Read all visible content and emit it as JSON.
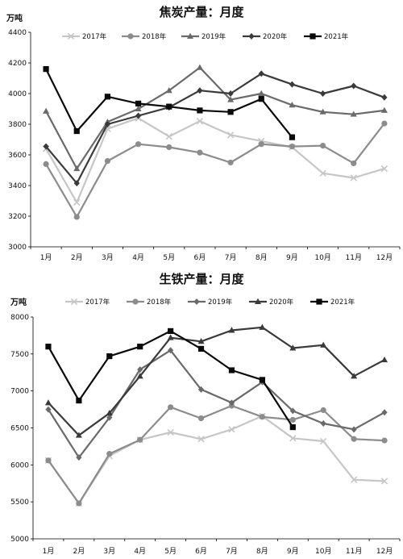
{
  "chart_data": [
    {
      "type": "line",
      "title": "焦炭产量：月度",
      "unit": "万吨",
      "categories": [
        "1月",
        "2月",
        "3月",
        "4月",
        "5月",
        "6月",
        "7月",
        "8月",
        "9月",
        "10月",
        "11月",
        "12月"
      ],
      "y_ticks": [
        "3000",
        "3200",
        "3400",
        "3600",
        "3800",
        "4000",
        "4200",
        "4400"
      ],
      "ylim": [
        3000,
        4400
      ],
      "legend_position": "top",
      "grid": false,
      "series": [
        {
          "name": "2017年",
          "color": "#c6c6c6",
          "marker": "x",
          "values": [
            3640,
            3290,
            3770,
            3840,
            3720,
            3820,
            3730,
            3690,
            3650,
            3480,
            3450,
            3510
          ]
        },
        {
          "name": "2018年",
          "color": "#8c8c8c",
          "marker": "circle",
          "values": [
            3540,
            3195,
            3560,
            3670,
            3650,
            3615,
            3550,
            3670,
            3655,
            3660,
            3545,
            3805
          ]
        },
        {
          "name": "2019年",
          "color": "#6a6a6a",
          "marker": "triangle",
          "values": [
            3885,
            3510,
            3815,
            3900,
            4020,
            4170,
            3960,
            4000,
            3925,
            3880,
            3865,
            3890
          ]
        },
        {
          "name": "2020年",
          "color": "#3a3a3a",
          "marker": "diamond",
          "values": [
            3655,
            3415,
            3800,
            3855,
            3910,
            4020,
            4000,
            4130,
            4060,
            4000,
            4050,
            3975
          ]
        },
        {
          "name": "2021年",
          "color": "#0a0a0a",
          "marker": "square",
          "values": [
            4160,
            3755,
            3980,
            3935,
            3915,
            3890,
            3880,
            3965,
            3715,
            null,
            null,
            null
          ]
        }
      ]
    },
    {
      "type": "line",
      "title": "生铁产量：月度",
      "unit": "万吨",
      "categories": [
        "1月",
        "2月",
        "3月",
        "4月",
        "5月",
        "6月",
        "7月",
        "8月",
        "9月",
        "10月",
        "11月",
        "12月"
      ],
      "y_ticks": [
        "5000",
        "5500",
        "6000",
        "6500",
        "7000",
        "7500",
        "8000"
      ],
      "ylim": [
        5000,
        8000
      ],
      "legend_position": "top",
      "grid": false,
      "series": [
        {
          "name": "2017年",
          "color": "#c6c6c6",
          "marker": "x",
          "values": [
            6060,
            5480,
            6120,
            6340,
            6440,
            6350,
            6480,
            6660,
            6360,
            6320,
            5800,
            5780
          ]
        },
        {
          "name": "2018年",
          "color": "#8c8c8c",
          "marker": "circle",
          "values": [
            6060,
            5480,
            6150,
            6340,
            6780,
            6630,
            6800,
            6650,
            6610,
            6740,
            6350,
            6330
          ]
        },
        {
          "name": "2019年",
          "color": "#6a6a6a",
          "marker": "diamond",
          "values": [
            6750,
            6100,
            6640,
            7290,
            7550,
            7020,
            6840,
            7120,
            6730,
            6560,
            6480,
            6710
          ]
        },
        {
          "name": "2020年",
          "color": "#3a3a3a",
          "marker": "triangle",
          "values": [
            6840,
            6400,
            6700,
            7200,
            7720,
            7670,
            7820,
            7860,
            7580,
            7620,
            7200,
            7420
          ]
        },
        {
          "name": "2021年",
          "color": "#0a0a0a",
          "marker": "square",
          "values": [
            7600,
            6870,
            7470,
            7600,
            7810,
            7570,
            7280,
            7150,
            6510,
            null,
            null,
            null
          ]
        }
      ]
    }
  ]
}
